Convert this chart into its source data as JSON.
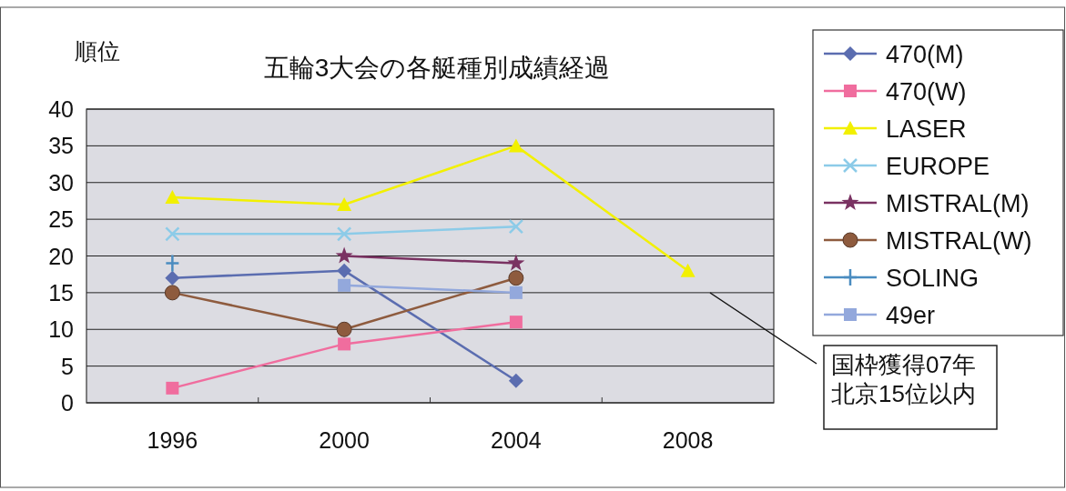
{
  "chart_data": {
    "type": "line",
    "title": "五輪3大会の各艇種別成績経過",
    "ylabel": "順位",
    "categories": [
      "1996",
      "2000",
      "2004",
      "2008"
    ],
    "series": [
      {
        "name": "470(M)",
        "color": "#5b6db0",
        "marker": "diamond",
        "values": [
          17,
          18,
          3,
          null
        ]
      },
      {
        "name": "470(W)",
        "color": "#f06d9e",
        "marker": "square",
        "values": [
          2,
          8,
          11,
          null
        ]
      },
      {
        "name": "LASER",
        "color": "#f2f000",
        "marker": "triangle",
        "values": [
          28,
          27,
          35,
          18
        ]
      },
      {
        "name": "EUROPE",
        "color": "#8ccbe8",
        "marker": "cross",
        "values": [
          23,
          23,
          24,
          null
        ]
      },
      {
        "name": "MISTRAL(M)",
        "color": "#7a3262",
        "marker": "star",
        "values": [
          null,
          20,
          19,
          null
        ]
      },
      {
        "name": "MISTRAL(W)",
        "color": "#8e5b3e",
        "marker": "circle",
        "values": [
          15,
          10,
          17,
          null
        ]
      },
      {
        "name": "SOLING",
        "color": "#4a8cc0",
        "marker": "plus",
        "values": [
          19,
          null,
          null,
          null
        ]
      },
      {
        "name": "49er",
        "color": "#93a8dc",
        "marker": "square",
        "values": [
          null,
          16,
          15,
          null
        ]
      }
    ],
    "ylim": [
      0,
      40
    ],
    "yticks": [
      0,
      5,
      10,
      15,
      20,
      25,
      30,
      35,
      40
    ],
    "grid": "y",
    "legend": "right",
    "annotations": [
      "国枠獲得07年北京15位以内"
    ]
  }
}
